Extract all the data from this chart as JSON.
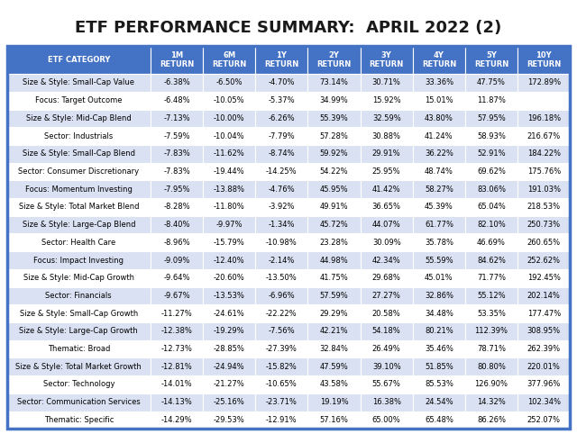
{
  "title": "ETF PERFORMANCE SUMMARY:  APRIL 2022 (2)",
  "columns": [
    "ETF CATEGORY",
    "1M\nRETURN",
    "6M\nRETURN",
    "1Y\nRETURN",
    "2Y\nRETURN",
    "3Y\nRETURN",
    "4Y\nRETURN",
    "5Y\nRETURN",
    "10Y\nRETURN"
  ],
  "rows": [
    [
      "Size & Style: Small-Cap Value",
      "-6.38%",
      "-6.50%",
      "-4.70%",
      "73.14%",
      "30.71%",
      "33.36%",
      "47.75%",
      "172.89%"
    ],
    [
      "Focus: Target Outcome",
      "-6.48%",
      "-10.05%",
      "-5.37%",
      "34.99%",
      "15.92%",
      "15.01%",
      "11.87%",
      ""
    ],
    [
      "Size & Style: Mid-Cap Blend",
      "-7.13%",
      "-10.00%",
      "-6.26%",
      "55.39%",
      "32.59%",
      "43.80%",
      "57.95%",
      "196.18%"
    ],
    [
      "Sector: Industrials",
      "-7.59%",
      "-10.04%",
      "-7.79%",
      "57.28%",
      "30.88%",
      "41.24%",
      "58.93%",
      "216.67%"
    ],
    [
      "Size & Style: Small-Cap Blend",
      "-7.83%",
      "-11.62%",
      "-8.74%",
      "59.92%",
      "29.91%",
      "36.22%",
      "52.91%",
      "184.22%"
    ],
    [
      "Sector: Consumer Discretionary",
      "-7.83%",
      "-19.44%",
      "-14.25%",
      "54.22%",
      "25.95%",
      "48.74%",
      "69.62%",
      "175.76%"
    ],
    [
      "Focus: Momentum Investing",
      "-7.95%",
      "-13.88%",
      "-4.76%",
      "45.95%",
      "41.42%",
      "58.27%",
      "83.06%",
      "191.03%"
    ],
    [
      "Size & Style: Total Market Blend",
      "-8.28%",
      "-11.80%",
      "-3.92%",
      "49.91%",
      "36.65%",
      "45.39%",
      "65.04%",
      "218.53%"
    ],
    [
      "Size & Style: Large-Cap Blend",
      "-8.40%",
      "-9.97%",
      "-1.34%",
      "45.72%",
      "44.07%",
      "61.77%",
      "82.10%",
      "250.73%"
    ],
    [
      "Sector: Health Care",
      "-8.96%",
      "-15.79%",
      "-10.98%",
      "23.28%",
      "30.09%",
      "35.78%",
      "46.69%",
      "260.65%"
    ],
    [
      "Focus: Impact Investing",
      "-9.09%",
      "-12.40%",
      "-2.14%",
      "44.98%",
      "42.34%",
      "55.59%",
      "84.62%",
      "252.62%"
    ],
    [
      "Size & Style: Mid-Cap Growth",
      "-9.64%",
      "-20.60%",
      "-13.50%",
      "41.75%",
      "29.68%",
      "45.01%",
      "71.77%",
      "192.45%"
    ],
    [
      "Sector: Financials",
      "-9.67%",
      "-13.53%",
      "-6.96%",
      "57.59%",
      "27.27%",
      "32.86%",
      "55.12%",
      "202.14%"
    ],
    [
      "Size & Style: Small-Cap Growth",
      "-11.27%",
      "-24.61%",
      "-22.22%",
      "29.29%",
      "20.58%",
      "34.48%",
      "53.35%",
      "177.47%"
    ],
    [
      "Size & Style: Large-Cap Growth",
      "-12.38%",
      "-19.29%",
      "-7.56%",
      "42.21%",
      "54.18%",
      "80.21%",
      "112.39%",
      "308.95%"
    ],
    [
      "Thematic: Broad",
      "-12.73%",
      "-28.85%",
      "-27.39%",
      "32.84%",
      "26.49%",
      "35.46%",
      "78.71%",
      "262.39%"
    ],
    [
      "Size & Style: Total Market Growth",
      "-12.81%",
      "-24.94%",
      "-15.82%",
      "47.59%",
      "39.10%",
      "51.85%",
      "80.80%",
      "220.01%"
    ],
    [
      "Sector: Technology",
      "-14.01%",
      "-21.27%",
      "-10.65%",
      "43.58%",
      "55.67%",
      "85.53%",
      "126.90%",
      "377.96%"
    ],
    [
      "Sector: Communication Services",
      "-14.13%",
      "-25.16%",
      "-23.71%",
      "19.19%",
      "16.38%",
      "24.54%",
      "14.32%",
      "102.34%"
    ],
    [
      "Thematic: Specific",
      "-14.29%",
      "-29.53%",
      "-12.91%",
      "57.16%",
      "65.00%",
      "65.48%",
      "86.26%",
      "252.07%"
    ]
  ],
  "header_bg": "#4472C4",
  "header_fg": "#FFFFFF",
  "row_bg_even": "#FFFFFF",
  "row_bg_odd": "#D9E1F2",
  "row_fg": "#000000",
  "title_color": "#1a1a1a",
  "cell_border": "#FFFFFF",
  "outer_bg": "#FFFFFF",
  "col_widths_rel": [
    2.6,
    0.95,
    0.95,
    0.95,
    0.95,
    0.95,
    0.95,
    0.95,
    0.95
  ]
}
